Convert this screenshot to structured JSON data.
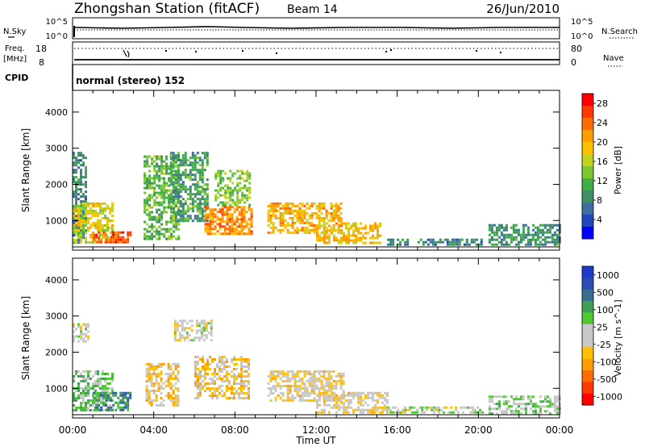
{
  "header": {
    "title": "Zhongshan Station (fitACF)",
    "beam": "Beam 14",
    "date": "26/Jun/2010"
  },
  "summary": {
    "nsky_label": "N.Sky",
    "nsky_ticks": [
      "10^5",
      "10^0"
    ],
    "nsearch_label": "N.Search",
    "nsearch_ticks": [
      "10^5",
      "10^0"
    ],
    "freq_label_1": "Freq.",
    "freq_label_2": "[MHz]",
    "freq_ticks": [
      "18",
      "8"
    ],
    "nave_label": "Nave",
    "nave_ticks": [
      "80",
      "0"
    ],
    "cpid_label": "CPID",
    "cpid_text": "normal (stereo) 152"
  },
  "chart_data": [
    {
      "type": "heatmap",
      "title": "",
      "xlabel": "Time UT",
      "ylabel": "Slant Range [km]",
      "x_ticks": [
        "00:00",
        "04:00",
        "08:00",
        "12:00",
        "16:00",
        "20:00",
        "00:00"
      ],
      "xlim": [
        0,
        24
      ],
      "y_ticks": [
        "1000",
        "2000",
        "3000",
        "4000"
      ],
      "ylim": [
        180,
        4600
      ],
      "colorbar": {
        "label": "Power [dB]",
        "ticks": [
          "4",
          "8",
          "12",
          "16",
          "20",
          "24",
          "28"
        ],
        "range": [
          0,
          30
        ],
        "colors": [
          "#0000ff",
          "#2244bb",
          "#3d6e9e",
          "#3f8f63",
          "#3fae47",
          "#7dc832",
          "#c3d21e",
          "#ffc000",
          "#ff9c00",
          "#ff6d00",
          "#ff3a00",
          "#ff0000"
        ]
      },
      "regions": [
        {
          "t": [
            0.0,
            0.7
          ],
          "r": [
            400,
            2900
          ],
          "v": 8
        },
        {
          "t": [
            0.0,
            2.0
          ],
          "r": [
            400,
            1500
          ],
          "v": 17
        },
        {
          "t": [
            1.0,
            2.9
          ],
          "r": [
            380,
            700
          ],
          "v": 25
        },
        {
          "t": [
            3.5,
            5.2
          ],
          "r": [
            500,
            2800
          ],
          "v": 12
        },
        {
          "t": [
            4.8,
            6.6
          ],
          "r": [
            1000,
            2900
          ],
          "v": 10
        },
        {
          "t": [
            6.5,
            8.8
          ],
          "r": [
            600,
            1400
          ],
          "v": 22
        },
        {
          "t": [
            7.0,
            8.7
          ],
          "r": [
            1400,
            2400
          ],
          "v": 14
        },
        {
          "t": [
            9.6,
            13.2
          ],
          "r": [
            650,
            1500
          ],
          "v": 20
        },
        {
          "t": [
            12.0,
            15.2
          ],
          "r": [
            350,
            950
          ],
          "v": 19
        },
        {
          "t": [
            15.5,
            16.5
          ],
          "r": [
            300,
            500
          ],
          "v": 9
        },
        {
          "t": [
            17.0,
            20.2
          ],
          "r": [
            300,
            500
          ],
          "v": 8
        },
        {
          "t": [
            20.5,
            24.0
          ],
          "r": [
            300,
            900
          ],
          "v": 9
        }
      ]
    },
    {
      "type": "heatmap",
      "title": "",
      "xlabel": "Time UT",
      "ylabel": "Slant Range [km]",
      "x_ticks": [
        "00:00",
        "04:00",
        "08:00",
        "12:00",
        "16:00",
        "20:00",
        "00:00"
      ],
      "xlim": [
        0,
        24
      ],
      "y_ticks": [
        "1000",
        "2000",
        "3000",
        "4000"
      ],
      "ylim": [
        180,
        4600
      ],
      "colorbar": {
        "label": "Velocity [m s^-1]",
        "ticks": [
          "1000",
          "500",
          "100",
          "25",
          "-25",
          "-100",
          "-500",
          "-1000"
        ],
        "range": [
          -1200,
          1200
        ],
        "colors": [
          "#ff0000",
          "#ff3a00",
          "#ff6d00",
          "#ff9c00",
          "#ffc000",
          "#c8c8c8",
          "#c8c8c8",
          "#4fc832",
          "#3f9f58",
          "#3a6e8e",
          "#2a4cb6",
          "#1e3ccc"
        ]
      },
      "regions": [
        {
          "t": [
            0.0,
            0.8
          ],
          "r": [
            2300,
            2800
          ],
          "v": 0
        },
        {
          "t": [
            0.0,
            2.0
          ],
          "r": [
            400,
            1500
          ],
          "v": 300
        },
        {
          "t": [
            1.0,
            2.9
          ],
          "r": [
            400,
            900
          ],
          "v": 600
        },
        {
          "t": [
            3.6,
            5.2
          ],
          "r": [
            500,
            1700
          ],
          "v": -250
        },
        {
          "t": [
            5.0,
            6.8
          ],
          "r": [
            2300,
            2900
          ],
          "v": 0
        },
        {
          "t": [
            6.0,
            8.7
          ],
          "r": [
            700,
            1900
          ],
          "v": -220
        },
        {
          "t": [
            9.6,
            13.4
          ],
          "r": [
            650,
            1500
          ],
          "v": -150
        },
        {
          "t": [
            12.0,
            15.5
          ],
          "r": [
            350,
            900
          ],
          "v": -120
        },
        {
          "t": [
            15.5,
            20.2
          ],
          "r": [
            300,
            500
          ],
          "v": 60
        },
        {
          "t": [
            20.5,
            24.0
          ],
          "r": [
            300,
            800
          ],
          "v": 150
        }
      ]
    }
  ]
}
